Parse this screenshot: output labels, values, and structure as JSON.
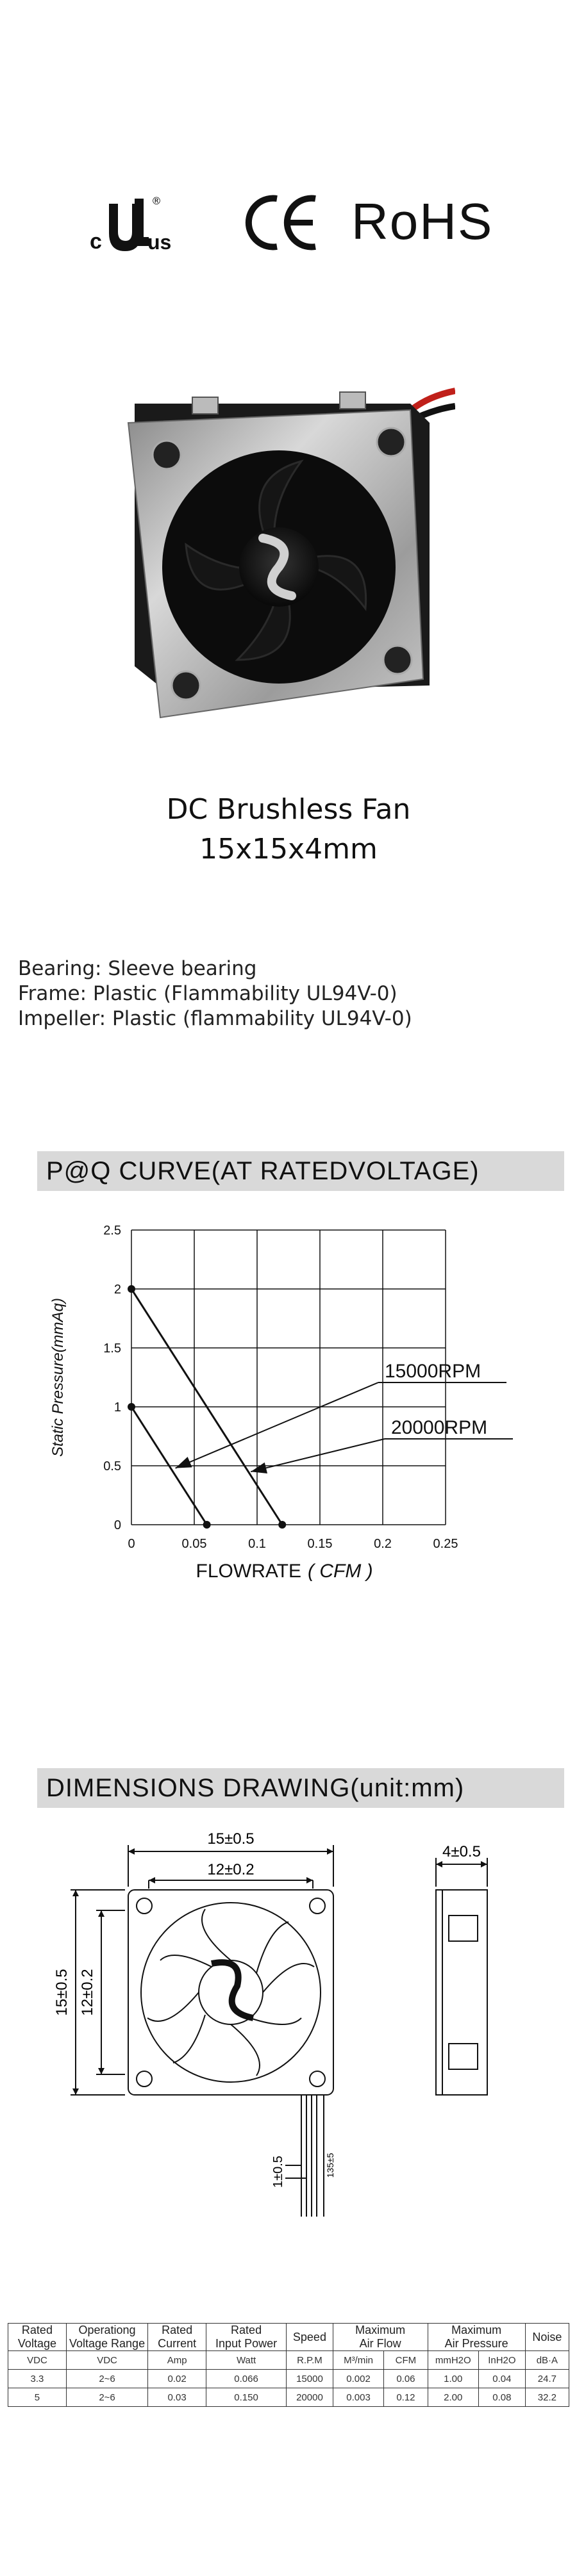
{
  "certifications": {
    "ul_c": "c",
    "ul_mark": "UL",
    "ul_r": "®",
    "ul_us": "us",
    "ce": "CE",
    "rohs": "RoHS"
  },
  "product": {
    "title": "DC Brushless Fan",
    "size": "15x15x4mm"
  },
  "specs": [
    "Bearing: Sleeve bearing",
    "Frame: Plastic (Flammability UL94V-0)",
    "Impeller: Plastic (flammability UL94V-0)"
  ],
  "pq_section": {
    "title": "P@Q CURVE(AT RATEDVOLTAGE)"
  },
  "chart_data": {
    "type": "line",
    "ylabel": "Static Pressure(mmAq)",
    "xlabel_main": "FLOWRATE",
    "xlabel_unit": "( CFM )",
    "xlim": [
      0,
      0.25
    ],
    "ylim": [
      0,
      2.5
    ],
    "x_ticks": [
      "0",
      "0.05",
      "0.1",
      "0.15",
      "0.2",
      "0.25"
    ],
    "y_ticks": [
      "0",
      "0.5",
      "1",
      "1.5",
      "2",
      "2.5"
    ],
    "grid": true,
    "series": [
      {
        "name": "15000RPM",
        "x": [
          0,
          0.06
        ],
        "y": [
          1.0,
          0
        ]
      },
      {
        "name": "20000RPM",
        "x": [
          0,
          0.12
        ],
        "y": [
          2.0,
          0
        ]
      }
    ]
  },
  "dimensions": {
    "title": "DIMENSIONS DRAWING(unit:mm)",
    "outer_width": "15±0.5",
    "inner_width": "12±0.2",
    "outer_height": "15±0.5",
    "inner_height": "12±0.2",
    "thickness": "4±0.5",
    "lead_pitch": "1±0.5",
    "lead_length": "135±5"
  },
  "table": {
    "headers": [
      [
        "Rated",
        "Voltage"
      ],
      [
        "Operationg",
        "Voltage Range"
      ],
      [
        "Rated",
        "Current"
      ],
      [
        "Rated",
        "Input Power"
      ],
      [
        "Speed",
        ""
      ],
      [
        "Maximum",
        "Air Flow"
      ],
      [
        "Maximum",
        "Air Pressure"
      ],
      [
        "Noise",
        ""
      ]
    ],
    "units": [
      "VDC",
      "VDC",
      "Amp",
      "Watt",
      "R.P.M",
      "M³/min",
      "CFM",
      "mmH2O",
      "InH2O",
      "dB·A"
    ],
    "rows": [
      [
        "3.3",
        "2~6",
        "0.02",
        "0.066",
        "15000",
        "0.002",
        "0.06",
        "1.00",
        "0.04",
        "24.7"
      ],
      [
        "5",
        "2~6",
        "0.03",
        "0.150",
        "20000",
        "0.003",
        "0.12",
        "2.00",
        "0.08",
        "32.2"
      ]
    ],
    "highlight_color": "#2a8fd6"
  }
}
